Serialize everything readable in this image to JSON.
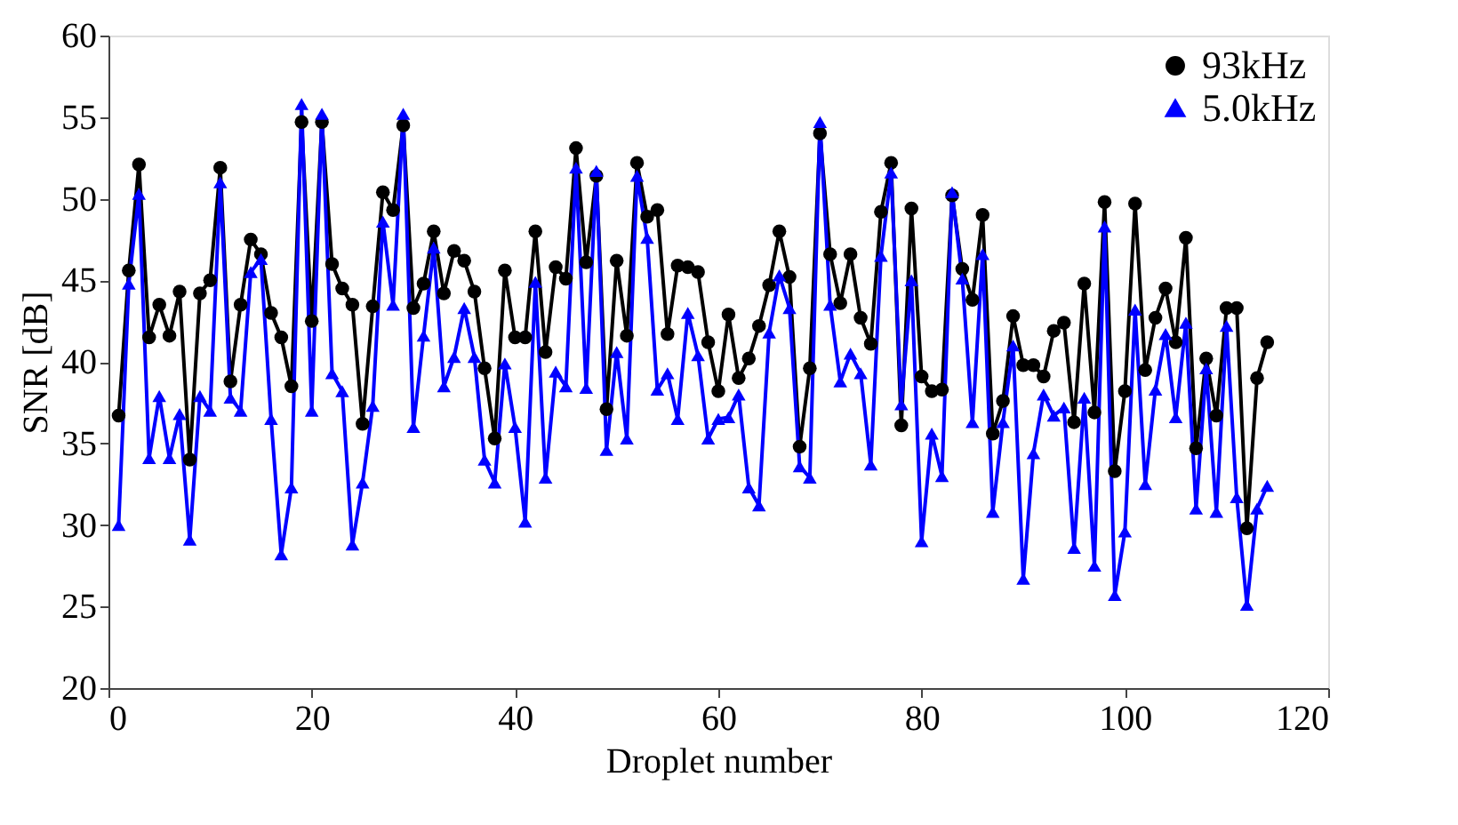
{
  "chart_data": {
    "type": "line",
    "xlabel": "Droplet number",
    "ylabel": "SNR  [dB]",
    "xlim": [
      0,
      120
    ],
    "xticks": [
      0,
      20,
      40,
      60,
      80,
      100,
      120
    ],
    "ylim": [
      20,
      60
    ],
    "yticks": [
      20,
      25,
      30,
      35,
      40,
      45,
      50,
      55,
      60
    ],
    "grid": false,
    "legend": "top right",
    "line_style": "solid",
    "x": [
      1,
      2,
      3,
      4,
      5,
      6,
      7,
      8,
      9,
      10,
      11,
      12,
      13,
      14,
      15,
      16,
      17,
      18,
      19,
      20,
      21,
      22,
      23,
      24,
      25,
      26,
      27,
      28,
      29,
      30,
      31,
      32,
      33,
      34,
      35,
      36,
      37,
      38,
      39,
      40,
      41,
      42,
      43,
      44,
      45,
      46,
      47,
      48,
      49,
      50,
      51,
      52,
      53,
      54,
      55,
      56,
      57,
      58,
      59,
      60,
      61,
      62,
      63,
      64,
      65,
      66,
      67,
      68,
      69,
      70,
      71,
      72,
      73,
      74,
      75,
      76,
      77,
      78,
      79,
      80,
      81,
      82,
      83,
      84,
      85,
      86,
      87,
      88,
      89,
      90,
      91,
      92,
      93,
      94,
      95,
      96,
      97,
      98,
      99,
      100,
      101,
      102,
      103,
      104,
      105,
      106,
      107,
      108,
      109,
      110,
      111,
      112,
      113,
      114
    ],
    "series": [
      {
        "name": "93kHz",
        "color": "#000000",
        "marker": "circle",
        "values": [
          36.7,
          45.6,
          52.1,
          41.5,
          43.5,
          41.6,
          44.3,
          34.0,
          44.2,
          45.0,
          51.9,
          38.8,
          43.5,
          47.5,
          46.6,
          43.0,
          41.5,
          38.5,
          54.7,
          42.5,
          54.7,
          46.0,
          44.5,
          43.5,
          36.2,
          43.4,
          50.4,
          49.3,
          54.5,
          43.3,
          44.8,
          48.0,
          44.2,
          46.8,
          46.2,
          44.3,
          39.6,
          35.3,
          45.6,
          41.5,
          41.5,
          48.0,
          40.6,
          45.8,
          45.1,
          53.1,
          46.1,
          51.4,
          37.1,
          46.2,
          41.6,
          52.2,
          48.9,
          49.3,
          41.7,
          45.9,
          45.8,
          45.5,
          41.2,
          38.2,
          42.9,
          39.0,
          40.2,
          42.2,
          44.7,
          48.0,
          45.2,
          34.8,
          39.6,
          54.0,
          46.6,
          43.6,
          46.6,
          42.7,
          41.1,
          49.2,
          52.2,
          36.1,
          49.4,
          39.1,
          38.2,
          38.3,
          50.2,
          45.7,
          43.8,
          49.0,
          35.6,
          37.6,
          42.8,
          39.8,
          39.8,
          39.1,
          41.9,
          42.4,
          36.3,
          44.8,
          36.9,
          49.8,
          33.3,
          38.2,
          49.7,
          39.5,
          42.7,
          44.5,
          41.2,
          47.6,
          34.7,
          40.2,
          36.7,
          43.3,
          43.3,
          29.8,
          39.0,
          41.2
        ]
      },
      {
        "name": "5.0kHz",
        "color": "#0000ff",
        "marker": "triangle",
        "values": [
          30.0,
          44.8,
          50.3,
          34.1,
          37.9,
          34.1,
          36.8,
          29.1,
          37.9,
          37.0,
          51.0,
          37.8,
          37.0,
          45.5,
          46.3,
          36.5,
          28.2,
          32.3,
          55.8,
          37.0,
          55.2,
          39.3,
          38.2,
          28.8,
          32.6,
          37.3,
          48.6,
          43.5,
          55.2,
          36.0,
          41.6,
          47.0,
          38.5,
          40.3,
          43.3,
          40.3,
          34.0,
          32.6,
          39.9,
          36.0,
          30.2,
          44.9,
          32.9,
          39.4,
          38.5,
          51.9,
          38.4,
          51.7,
          34.6,
          40.6,
          35.3,
          51.4,
          47.6,
          38.3,
          39.3,
          36.5,
          43.0,
          40.4,
          35.3,
          36.5,
          36.6,
          38.0,
          32.3,
          31.2,
          41.8,
          45.3,
          43.3,
          33.6,
          32.9,
          54.7,
          43.5,
          38.8,
          40.5,
          39.3,
          33.7,
          46.5,
          51.6,
          37.4,
          45.0,
          29.0,
          35.6,
          33.0,
          50.4,
          45.1,
          36.3,
          46.6,
          30.8,
          36.3,
          41.0,
          26.7,
          34.4,
          38.0,
          36.7,
          37.2,
          28.6,
          37.8,
          27.5,
          48.3,
          25.7,
          29.6,
          43.2,
          32.5,
          38.3,
          41.7,
          36.6,
          42.4,
          31.0,
          39.6,
          30.8,
          42.2,
          31.7,
          25.1,
          31.0,
          32.4
        ]
      }
    ]
  }
}
